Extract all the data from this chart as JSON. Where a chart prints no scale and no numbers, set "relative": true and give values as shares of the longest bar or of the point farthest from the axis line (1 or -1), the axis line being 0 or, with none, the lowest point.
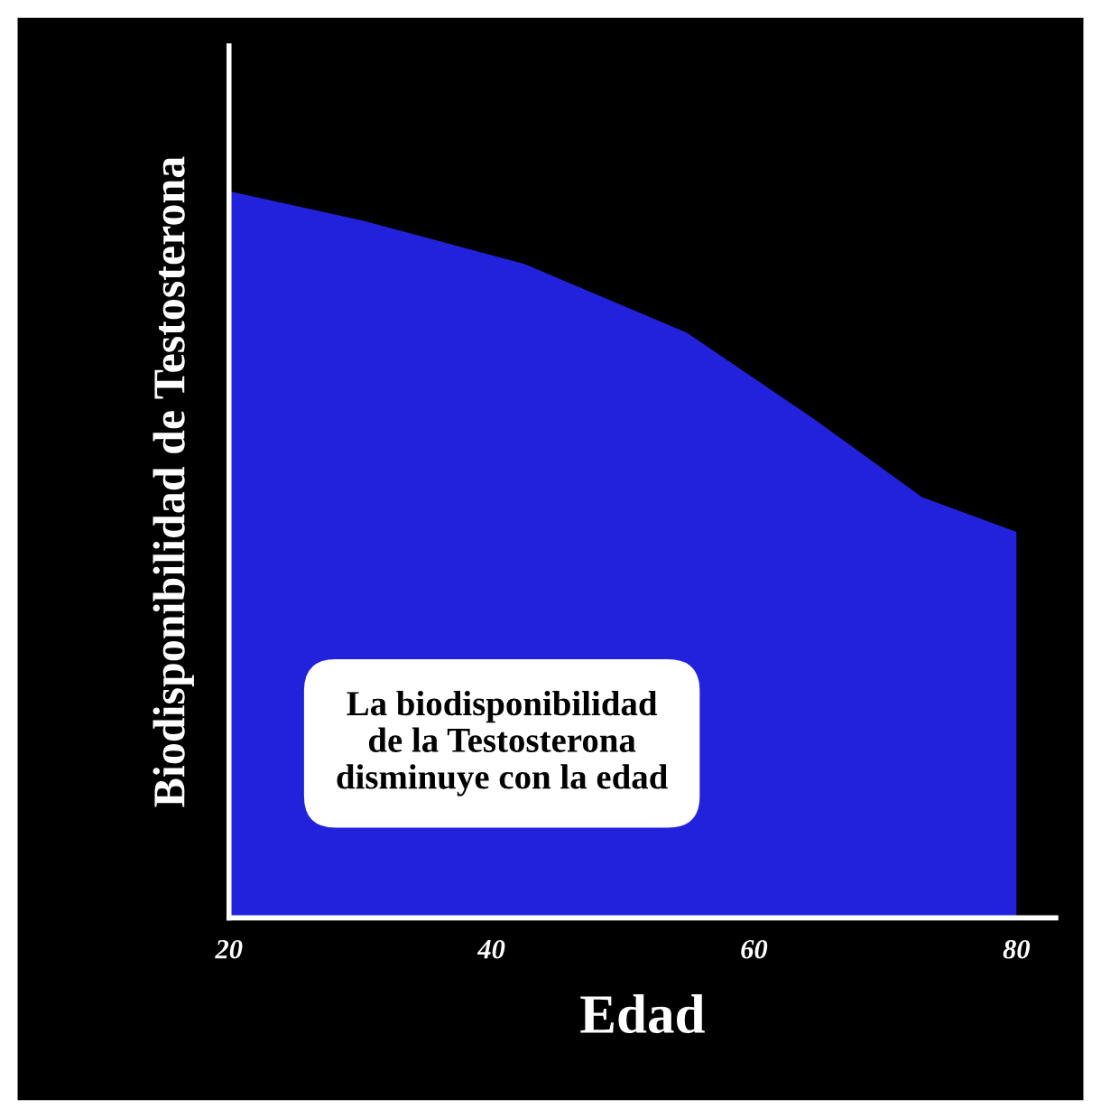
{
  "chart_data": {
    "type": "area",
    "relative": true,
    "xlabel": "Edad",
    "ylabel": "Biodisponibilidad de Testosterona",
    "x": [
      20,
      30.1,
      42.5,
      54.9,
      64.6,
      72.8,
      80
    ],
    "series": [
      {
        "color": "#2222dd",
        "values": [
          1,
          0.96,
          0.9,
          0.805,
          0.686,
          0.579,
          0.531
        ]
      }
    ],
    "xlim": [
      20,
      83
    ],
    "xticks": [
      20,
      40,
      60,
      80
    ],
    "annotations": [
      "La biodisponibilidad\nde la Testosterona\ndisminuye con la edad"
    ]
  }
}
